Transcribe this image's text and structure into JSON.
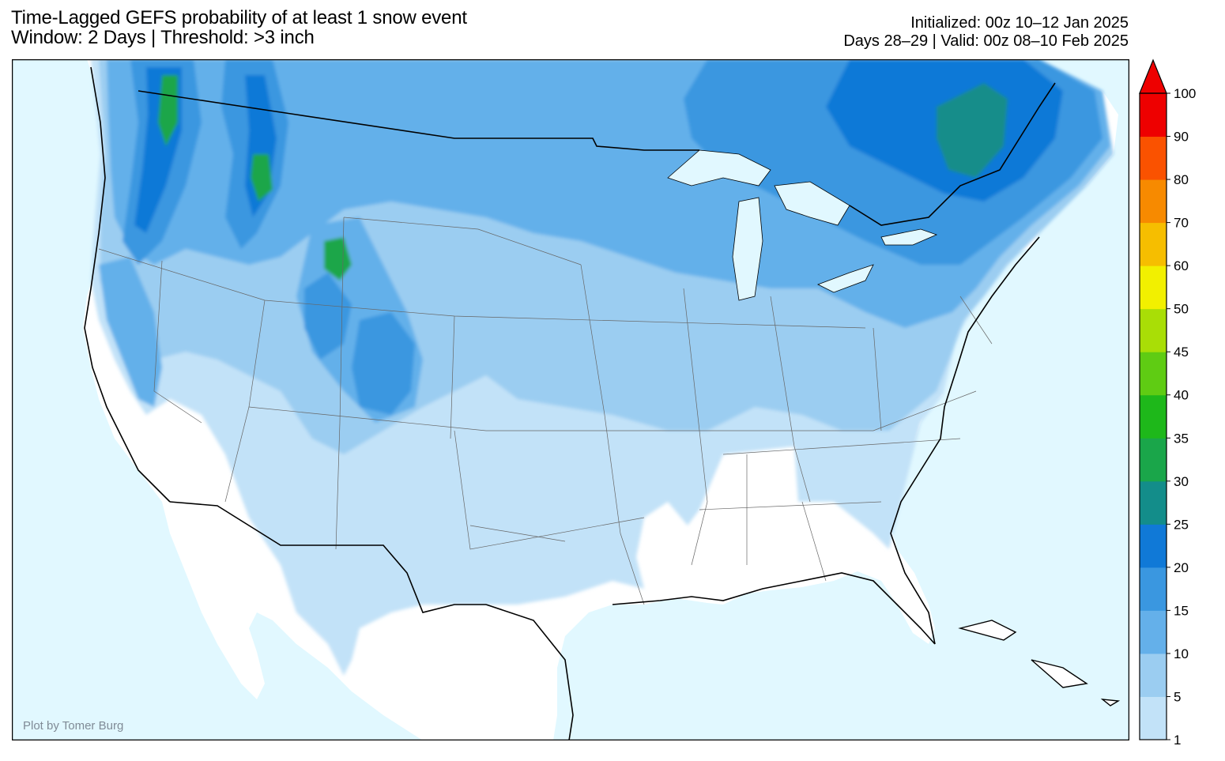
{
  "header": {
    "title_line1": "Time-Lagged GEFS probability of at least 1 snow event",
    "title_line2": "Window: 2 Days | Threshold: >3 inch",
    "initialized": "Initialized: 00z 10–12 Jan 2025",
    "valid": "Days 28–29 | Valid: 00z 08–10 Feb 2025"
  },
  "credit": "Plot by Tomer Burg",
  "colors": {
    "ocean": "#e1f8ff",
    "land_none": "#ffffff",
    "p1": "#c2e2f8",
    "p5": "#9bcdf1",
    "p10": "#64b0ea",
    "p15": "#3a97e0",
    "p20": "#1079d7",
    "p25": "#138d8a",
    "p30": "#1aa64a",
    "p35": "#1eb81a",
    "p40": "#5fcc13",
    "p45": "#a9de06"
  },
  "colorbar": {
    "levels": [
      "1",
      "5",
      "10",
      "15",
      "20",
      "25",
      "30",
      "35",
      "40",
      "45",
      "50",
      "60",
      "70",
      "80",
      "90",
      "100"
    ],
    "colors": [
      "#c2e2f8",
      "#9bcdf1",
      "#64b0ea",
      "#3a97e0",
      "#1079d7",
      "#138d8a",
      "#1aa64a",
      "#1eb81a",
      "#5fcc13",
      "#a9de06",
      "#f2f000",
      "#f6be00",
      "#f78a00",
      "#fa5200",
      "#ee0000"
    ]
  }
}
